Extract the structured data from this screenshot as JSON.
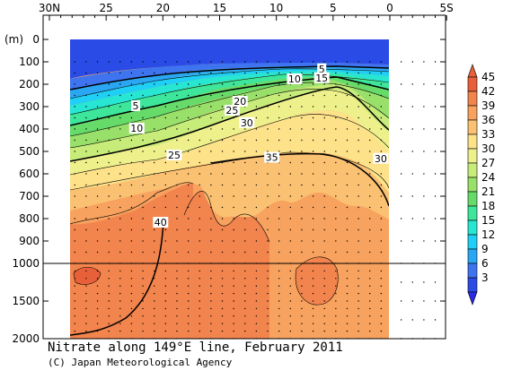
{
  "chart_data": {
    "type": "heatmap",
    "title": "Nitrate along 149°E line, February 2011",
    "credit": "(C) Japan Meteorological Agency",
    "x_axis": {
      "ticks": [
        "30N",
        "25",
        "20",
        "15",
        "10",
        "5",
        "0",
        "5S"
      ],
      "values": [
        30,
        25,
        20,
        15,
        10,
        5,
        0,
        -5
      ],
      "range": [
        30,
        -5
      ]
    },
    "y_axis": {
      "unit": "(m)",
      "ticks": [
        "0",
        "100",
        "200",
        "300",
        "400",
        "500",
        "600",
        "700",
        "800",
        "900",
        "1000",
        "1500",
        "2000"
      ],
      "values": [
        0,
        100,
        200,
        300,
        400,
        500,
        600,
        700,
        800,
        900,
        1000,
        1500,
        2000
      ],
      "range": [
        0,
        2000
      ],
      "note": "upper 0–1000 m on linear scale, 1000–2000 m compressed below break line"
    },
    "colorbar": {
      "levels": [
        3,
        6,
        9,
        12,
        15,
        18,
        21,
        24,
        27,
        30,
        33,
        36,
        39,
        42,
        45
      ],
      "colors": [
        "#2a4be6",
        "#3f74f0",
        "#2aa6f2",
        "#1fcff5",
        "#27e6d2",
        "#3de69a",
        "#66db6a",
        "#99e06a",
        "#c8ec7a",
        "#eef08c",
        "#fde28a",
        "#fbc172",
        "#f7a25e",
        "#f2844d",
        "#e8603a"
      ]
    },
    "contour_labels": [
      {
        "text": "5",
        "lat": 22.4,
        "depth": 300
      },
      {
        "text": "10",
        "lat": 22.3,
        "depth": 400
      },
      {
        "text": "25",
        "lat": 19.0,
        "depth": 520
      },
      {
        "text": "40",
        "lat": 20.2,
        "depth": 820
      },
      {
        "text": "20",
        "lat": 13.2,
        "depth": 280
      },
      {
        "text": "25",
        "lat": 13.9,
        "depth": 320
      },
      {
        "text": "30",
        "lat": 12.6,
        "depth": 375
      },
      {
        "text": "35",
        "lat": 10.4,
        "depth": 530
      },
      {
        "text": "10",
        "lat": 8.4,
        "depth": 180
      },
      {
        "text": "5",
        "lat": 6.0,
        "depth": 135
      },
      {
        "text": "15",
        "lat": 6.0,
        "depth": 175
      },
      {
        "text": "30",
        "lat": 0.8,
        "depth": 535
      }
    ]
  }
}
